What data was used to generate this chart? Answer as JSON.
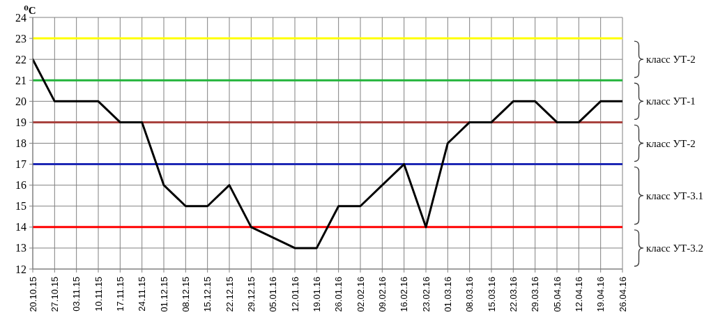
{
  "chart_data": {
    "type": "line",
    "ylabel": "⁰C",
    "categories": [
      "20.10.15",
      "27.10.15",
      "03.11.15",
      "10.11.15",
      "17.11.15",
      "24.11.15",
      "01.12.15",
      "08.12.15",
      "15.12.15",
      "22.12.15",
      "29.12.15",
      "05.01.16",
      "12.01.16",
      "19.01.16",
      "26.01.16",
      "02.02.16",
      "09.02.16",
      "16.02.16",
      "23.02.16",
      "01.03.16",
      "08.03.16",
      "15.03.16",
      "22.03.16",
      "29.03.16",
      "05.04.16",
      "12.04.16",
      "19.04.16",
      "26.04.16"
    ],
    "values": [
      22,
      20,
      20,
      20,
      19,
      19,
      16,
      15,
      15,
      16,
      14,
      13.5,
      13,
      13,
      15,
      15,
      16,
      17,
      14,
      18,
      19,
      19,
      20,
      20,
      19,
      19,
      20,
      20
    ],
    "color": "#000000",
    "ylim": [
      12,
      24
    ],
    "yticks": [
      12,
      13,
      14,
      15,
      16,
      17,
      18,
      19,
      20,
      21,
      22,
      23,
      24
    ],
    "grid": true,
    "ref_lines": [
      {
        "axis": "y",
        "value": 23,
        "color": "#ffff00"
      },
      {
        "axis": "y",
        "value": 21,
        "color": "#22b43a"
      },
      {
        "axis": "y",
        "value": 19,
        "color": "#a8423e"
      },
      {
        "axis": "y",
        "value": 17,
        "color": "#1e28b4"
      },
      {
        "axis": "y",
        "value": 14,
        "color": "#ff0000"
      }
    ],
    "annotations": [
      "класс УТ-2",
      "класс УТ-1",
      "класс УТ-2",
      "класс УТ-3.1",
      "класс УТ-3.2"
    ]
  }
}
